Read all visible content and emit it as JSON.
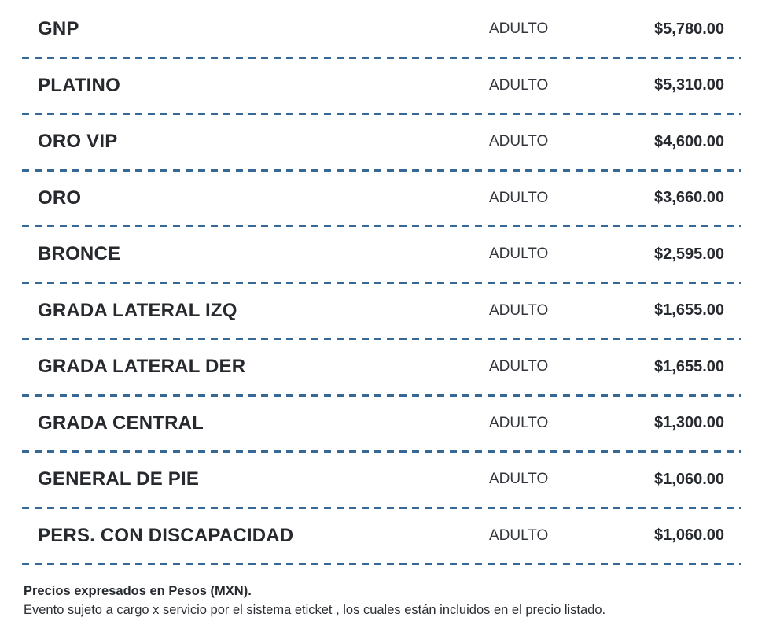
{
  "price_table": {
    "type_column_label": "ADULTO",
    "rows": [
      {
        "zone": "GNP",
        "type": "ADULTO",
        "price": "$5,780.00"
      },
      {
        "zone": "PLATINO",
        "type": "ADULTO",
        "price": "$5,310.00"
      },
      {
        "zone": "ORO VIP",
        "type": "ADULTO",
        "price": "$4,600.00"
      },
      {
        "zone": "ORO",
        "type": "ADULTO",
        "price": "$3,660.00"
      },
      {
        "zone": "BRONCE",
        "type": "ADULTO",
        "price": "$2,595.00"
      },
      {
        "zone": "GRADA LATERAL IZQ",
        "type": "ADULTO",
        "price": "$1,655.00"
      },
      {
        "zone": "GRADA LATERAL DER",
        "type": "ADULTO",
        "price": "$1,655.00"
      },
      {
        "zone": "GRADA CENTRAL",
        "type": "ADULTO",
        "price": "$1,300.00"
      },
      {
        "zone": "GENERAL DE PIE",
        "type": "ADULTO",
        "price": "$1,060.00"
      },
      {
        "zone": "PERS. CON DISCAPACIDAD",
        "type": "ADULTO",
        "price": "$1,060.00"
      }
    ]
  },
  "footer": {
    "line1": "Precios expresados en Pesos (MXN).",
    "line2": "Evento sujeto a cargo x servicio por el sistema eticket , los cuales están incluidos en el precio listado."
  },
  "colors": {
    "separator": "#366996",
    "text_dark": "#26292e"
  }
}
